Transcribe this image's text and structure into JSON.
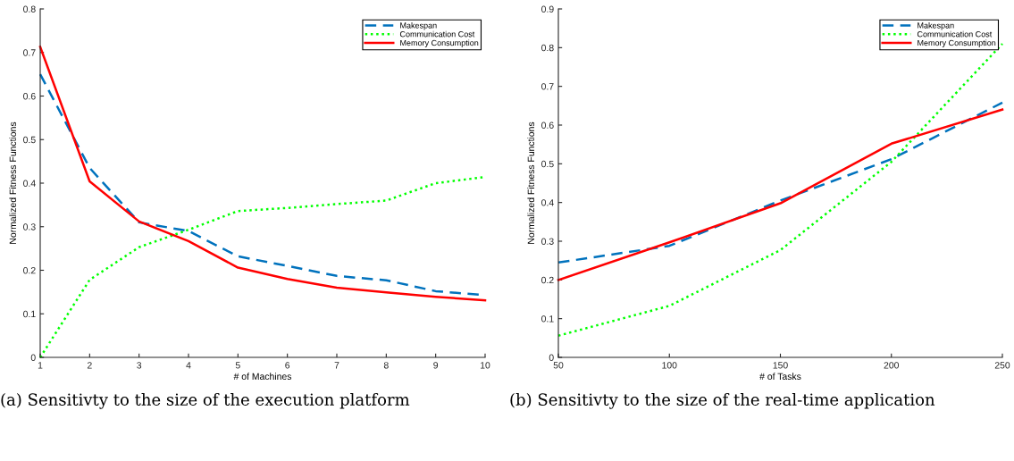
{
  "chart_data": [
    {
      "type": "line",
      "xlabel": "# of Machines",
      "ylabel": "Normalized Fitness Functions",
      "x": [
        1,
        2,
        3,
        4,
        5,
        6,
        7,
        8,
        9,
        10
      ],
      "xlim": [
        1,
        10
      ],
      "xticks": [
        1,
        2,
        3,
        4,
        5,
        6,
        7,
        8,
        9,
        10
      ],
      "ylim": [
        0,
        0.8
      ],
      "yticks": [
        0,
        0.1,
        0.2,
        0.3,
        0.4,
        0.5,
        0.6,
        0.7,
        0.8
      ],
      "legend": "top right",
      "marker": "none",
      "series": [
        {
          "name": "Makespan",
          "color": "#0072bd",
          "line_style": "dashed",
          "values": [
            0.65,
            0.435,
            0.31,
            0.29,
            0.232,
            0.21,
            0.187,
            0.177,
            0.152,
            0.143
          ]
        },
        {
          "name": "Communication Cost",
          "color": "#00ff00",
          "line_style": "dotted",
          "values": [
            0,
            0.178,
            0.253,
            0.293,
            0.336,
            0.343,
            0.352,
            0.36,
            0.4,
            0.414
          ]
        },
        {
          "name": "Memory Consumption",
          "color": "#ff0000",
          "line_style": "solid",
          "values": [
            0.713,
            0.404,
            0.312,
            0.267,
            0.206,
            0.18,
            0.16,
            0.149,
            0.139,
            0.131
          ]
        }
      ],
      "annotations": [
        "(a) Sensitivty to the size of the execution platform"
      ]
    },
    {
      "type": "line",
      "xlabel": "# of Tasks",
      "ylabel": "Normalized Fitness Functions",
      "x": [
        50,
        100,
        150,
        200,
        250
      ],
      "xlim": [
        50,
        250
      ],
      "xticks": [
        50,
        100,
        150,
        200,
        250
      ],
      "ylim": [
        0,
        0.9
      ],
      "yticks": [
        0,
        0.1,
        0.2,
        0.3,
        0.4,
        0.5,
        0.6,
        0.7,
        0.8,
        0.9
      ],
      "legend": "top right",
      "marker": "none",
      "series": [
        {
          "name": "Makespan",
          "color": "#0072bd",
          "line_style": "dashed",
          "values": [
            0.245,
            0.288,
            0.405,
            0.512,
            0.658
          ]
        },
        {
          "name": "Communication Cost",
          "color": "#00ff00",
          "line_style": "dotted",
          "values": [
            0.056,
            0.133,
            0.277,
            0.505,
            0.81
          ]
        },
        {
          "name": "Memory Consumption",
          "color": "#ff0000",
          "line_style": "solid",
          "values": [
            0.2,
            0.297,
            0.398,
            0.552,
            0.64
          ]
        }
      ],
      "annotations": [
        "(b) Sensitivty to the size of the real-time application"
      ]
    }
  ]
}
